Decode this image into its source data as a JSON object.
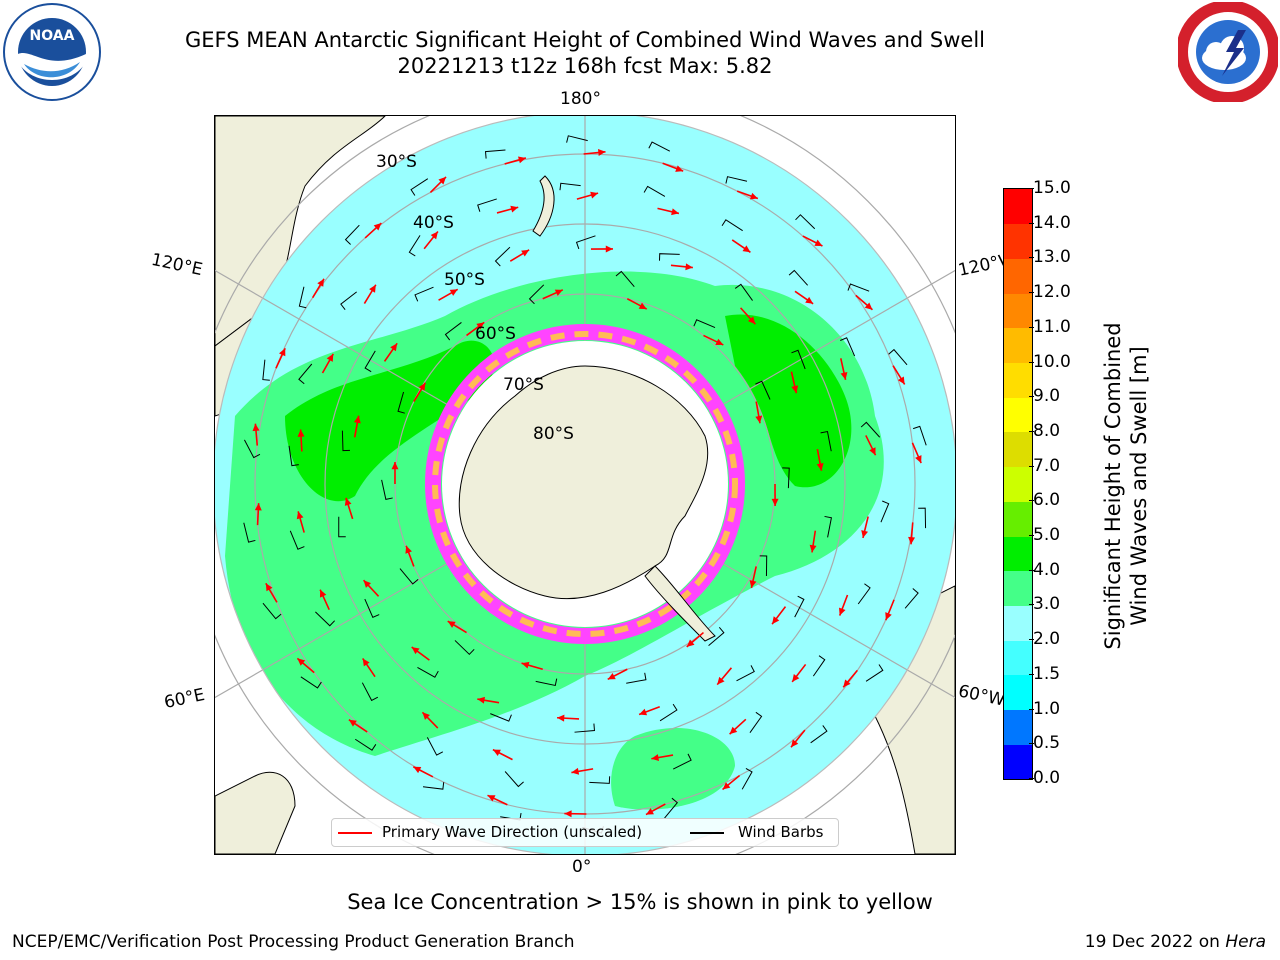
{
  "title": {
    "line1": "GEFS MEAN Antarctic Significant Height of Combined Wind Waves and Swell",
    "line2": "20221213 t12z 168h fcst   Max: 5.82"
  },
  "longitude_labels": {
    "lon_180": "180°",
    "lon_0": "0°",
    "lon_120e": "120°E",
    "lon_120w": "120°W",
    "lon_60e": "60°E",
    "lon_60w": "60°W"
  },
  "latitude_labels": [
    "30°S",
    "40°S",
    "50°S",
    "60°S",
    "70°S",
    "80°S"
  ],
  "colorbar": {
    "label_line1": "Significant Height of Combined",
    "label_line2": "Wind Waves and Swell [m]",
    "ticks": [
      "0.0",
      "0.5",
      "1.0",
      "1.5",
      "2.0",
      "3.0",
      "4.0",
      "5.0",
      "6.0",
      "7.0",
      "8.0",
      "9.0",
      "10.0",
      "11.0",
      "12.0",
      "13.0",
      "14.0",
      "15.0"
    ],
    "colors": [
      "#0000ff",
      "#0077ff",
      "#00ffff",
      "#44ffff",
      "#99ffff",
      "#44ff88",
      "#00ee00",
      "#66ee00",
      "#ccff00",
      "#dddd00",
      "#ffff00",
      "#ffdd00",
      "#ffbb00",
      "#ff8800",
      "#ff6600",
      "#ff3300",
      "#ff0000"
    ]
  },
  "legend": {
    "wave_direction": "Primary Wave Direction (unscaled)",
    "wind_barbs": "Wind Barbs",
    "wave_color": "#ff0000",
    "barb_color": "#000000"
  },
  "caption": "Sea Ice Concentration > 15% is shown in pink to yellow",
  "footer": {
    "left": "NCEP/EMC/Verification Post Processing Product Generation Branch",
    "right_date": "19 Dec 2022 on",
    "right_host": "Hera"
  },
  "logos": {
    "noaa_text": "NOAA",
    "nws_icon": "nws-lightning-cloud-icon"
  },
  "map_colors": {
    "land": "#efefdb",
    "ocean_low": "#99ffff",
    "ocean_mid": "#44ff88",
    "ocean_high": "#00ee00",
    "ice": "#ff44ff",
    "grid": "#aaaaaa"
  }
}
